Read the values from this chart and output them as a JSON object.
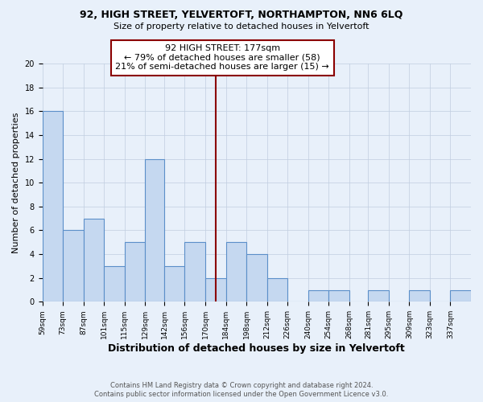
{
  "title": "92, HIGH STREET, YELVERTOFT, NORTHAMPTON, NN6 6LQ",
  "subtitle": "Size of property relative to detached houses in Yelvertoft",
  "xlabel": "Distribution of detached houses by size in Yelvertoft",
  "ylabel": "Number of detached properties",
  "bin_edges": [
    59,
    73,
    87,
    101,
    115,
    129,
    142,
    156,
    170,
    184,
    198,
    212,
    226,
    240,
    254,
    268,
    281,
    295,
    309,
    323,
    337,
    351
  ],
  "counts": [
    16,
    6,
    7,
    3,
    5,
    12,
    3,
    5,
    2,
    5,
    4,
    2,
    0,
    1,
    1,
    0,
    1,
    0,
    1,
    0,
    1
  ],
  "bar_color": "#c5d8f0",
  "bar_edge_color": "#5b8fc9",
  "bg_color": "#e8f0fa",
  "vline_x": 177,
  "vline_color": "#8b0000",
  "annotation_line1": "92 HIGH STREET: 177sqm",
  "annotation_line2": "← 79% of detached houses are smaller (58)",
  "annotation_line3": "21% of semi-detached houses are larger (15) →",
  "annotation_box_color": "white",
  "annotation_box_edge": "#8b0000",
  "ylim": [
    0,
    20
  ],
  "yticks": [
    0,
    2,
    4,
    6,
    8,
    10,
    12,
    14,
    16,
    18,
    20
  ],
  "tick_labels": [
    "59sqm",
    "73sqm",
    "87sqm",
    "101sqm",
    "115sqm",
    "129sqm",
    "142sqm",
    "156sqm",
    "170sqm",
    "184sqm",
    "198sqm",
    "212sqm",
    "226sqm",
    "240sqm",
    "254sqm",
    "268sqm",
    "281sqm",
    "295sqm",
    "309sqm",
    "323sqm",
    "337sqm"
  ],
  "footer_line1": "Contains HM Land Registry data © Crown copyright and database right 2024.",
  "footer_line2": "Contains public sector information licensed under the Open Government Licence v3.0.",
  "grid_color": "#c0cde0"
}
